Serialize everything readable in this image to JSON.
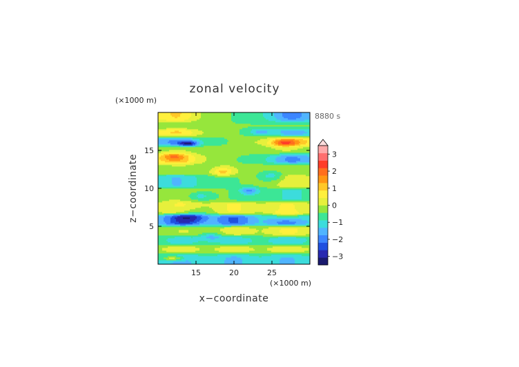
{
  "chart_data": {
    "type": "heatmap",
    "title": "zonal velocity",
    "time_label": "8880 s",
    "xlabel": "x−coordinate",
    "ylabel": "z−coordinate",
    "x_unit": "(×1000 m)",
    "y_unit": "(×1000 m)",
    "xlim": [
      10,
      30
    ],
    "ylim": [
      0,
      20
    ],
    "x_ticks": [
      {
        "value": 15,
        "label": "15"
      },
      {
        "value": 20,
        "label": "20"
      },
      {
        "value": 25,
        "label": "25"
      }
    ],
    "y_ticks": [
      {
        "value": 5,
        "label": "5"
      },
      {
        "value": 10,
        "label": "10"
      },
      {
        "value": 15,
        "label": "15"
      }
    ],
    "colorbar": {
      "range": [
        -3.5,
        3.5
      ],
      "step": 0.5,
      "extend": "max",
      "ticks": [
        {
          "value": 3,
          "label": "3"
        },
        {
          "value": 2,
          "label": "2"
        },
        {
          "value": 1,
          "label": "1"
        },
        {
          "value": 0,
          "label": "0"
        },
        {
          "value": -1,
          "label": "−1"
        },
        {
          "value": -2,
          "label": "−2"
        },
        {
          "value": -3,
          "label": "−3"
        }
      ],
      "colors": [
        "#1a1a6e",
        "#2828b0",
        "#2050e0",
        "#3c86ff",
        "#50b4ff",
        "#3cdcdc",
        "#3ce696",
        "#96e63c",
        "#e6f03c",
        "#fff03c",
        "#ffc828",
        "#ff9614",
        "#ff6e1e",
        "#ff3c28",
        "#ff6e6e",
        "#ffaaaa"
      ],
      "extend_color": "#ffdddd"
    },
    "bands": [
      {
        "z": 19.2,
        "left": 2.2,
        "right": -2.4
      },
      {
        "z": 18.4,
        "left": -0.2,
        "right": 0.3
      },
      {
        "z": 17.3,
        "left": 2.3,
        "right": -2.0
      },
      {
        "z": 16.3,
        "left": -2.4,
        "right": 2.8
      },
      {
        "z": 15.0,
        "left": 0.4,
        "right": 0.6
      },
      {
        "z": 14.0,
        "left": 2.6,
        "right": -2.4
      },
      {
        "z": 12.6,
        "left": 0.5,
        "right": 0.2
      },
      {
        "z": 11.0,
        "left": -1.4,
        "right": 1.2
      },
      {
        "z": 9.2,
        "left": 0.7,
        "right": -0.8
      },
      {
        "z": 7.3,
        "left": 1.1,
        "right": 1.1
      },
      {
        "z": 5.8,
        "left": -2.3,
        "right": -1.9
      },
      {
        "z": 4.4,
        "left": 0.4,
        "right": 1.3
      },
      {
        "z": 3.1,
        "left": -0.7,
        "right": -0.9
      },
      {
        "z": 1.9,
        "left": 0.9,
        "right": 1.0
      },
      {
        "z": 0.9,
        "left": -1.2,
        "right": -1.1
      }
    ],
    "blobs": [
      {
        "x": 14.0,
        "z": 15.9,
        "rx": 1.2,
        "rz": 0.35,
        "value": -2.2
      },
      {
        "x": 26.5,
        "z": 16.0,
        "rx": 1.6,
        "rz": 0.5,
        "value": 1.4
      },
      {
        "x": 12.0,
        "z": 14.3,
        "rx": 1.6,
        "rz": 0.5,
        "value": 1.0
      },
      {
        "x": 23.5,
        "z": 17.5,
        "rx": 1.3,
        "rz": 0.4,
        "value": -1.0
      },
      {
        "x": 18.5,
        "z": 12.2,
        "rx": 1.4,
        "rz": 0.6,
        "value": 1.4
      },
      {
        "x": 22.0,
        "z": 9.7,
        "rx": 1.2,
        "rz": 0.5,
        "value": -1.5
      },
      {
        "x": 14.5,
        "z": 6.3,
        "rx": 2.2,
        "rz": 0.9,
        "value": -1.2
      },
      {
        "x": 27.0,
        "z": 6.3,
        "rx": 2.0,
        "rz": 0.5,
        "value": 1.6
      },
      {
        "x": 17.0,
        "z": 3.7,
        "rx": 1.5,
        "rz": 0.5,
        "value": -1.0
      },
      {
        "x": 12.0,
        "z": 0.8,
        "rx": 1.5,
        "rz": 0.3,
        "value": 1.6
      },
      {
        "x": 15.5,
        "z": 9.0,
        "rx": 1.6,
        "rz": 0.5,
        "value": -0.8
      },
      {
        "x": 25.0,
        "z": 11.6,
        "rx": 1.5,
        "rz": 0.6,
        "value": -1.0
      }
    ]
  }
}
